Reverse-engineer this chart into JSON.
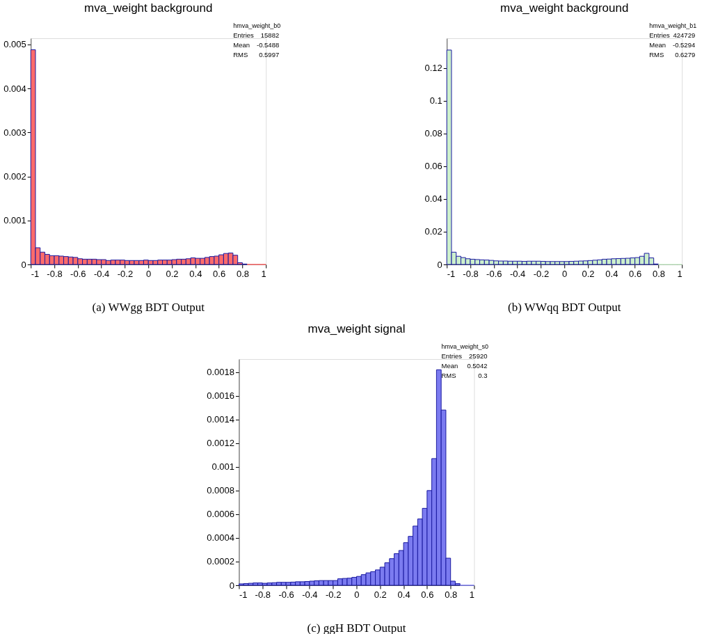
{
  "chart_data": [
    {
      "type": "histogram",
      "title": "mva_weight background",
      "bins": [
        -1,
        -0.96,
        -0.92,
        -0.88,
        -0.84,
        -0.8,
        -0.76,
        -0.72,
        -0.68,
        -0.64,
        -0.6,
        -0.56,
        -0.52,
        -0.48,
        -0.44,
        -0.4,
        -0.36,
        -0.32,
        -0.28,
        -0.24,
        -0.2,
        -0.16,
        -0.12,
        -0.08,
        -0.04,
        0,
        0.04,
        0.08,
        0.12,
        0.16,
        0.2,
        0.24,
        0.28,
        0.32,
        0.36,
        0.4,
        0.44,
        0.48,
        0.52,
        0.56,
        0.6,
        0.64,
        0.68,
        0.72,
        0.76,
        0.8,
        0.84,
        0.88,
        0.92,
        0.96,
        1
      ],
      "values": [
        0.00488,
        0.00038,
        0.00028,
        0.00023,
        0.0002,
        0.0002,
        0.00019,
        0.00018,
        0.00017,
        0.00016,
        0.00013,
        0.00012,
        0.00012,
        0.00012,
        0.00011,
        0.00011,
        9e-05,
        0.0001,
        0.0001,
        0.0001,
        9e-05,
        9e-05,
        9e-05,
        9e-05,
        0.0001,
        9e-05,
        9e-05,
        0.0001,
        0.0001,
        0.0001,
        0.00011,
        0.00012,
        0.00012,
        0.00013,
        0.00015,
        0.00014,
        0.00014,
        0.00016,
        0.00018,
        0.00019,
        0.00022,
        0.00025,
        0.00026,
        0.00021,
        4e-05,
        1e-05,
        0,
        0,
        0,
        0
      ],
      "color": "#ff6b6b",
      "xlim": [
        -1,
        1
      ],
      "xticks": [
        -1,
        -0.8,
        -0.6,
        -0.4,
        -0.2,
        0,
        0.2,
        0.4,
        0.6,
        0.8,
        1
      ],
      "ylim": [
        0,
        0.00514
      ],
      "yticks": [
        0,
        0.001,
        0.002,
        0.003,
        0.004,
        0.005
      ],
      "grid": false,
      "annotations": [
        "hmva_weight_b0",
        "Entries 15882",
        "Mean -0.5488",
        "RMS 0.5997",
        "(a) WWgg BDT Output"
      ]
    },
    {
      "type": "histogram",
      "title": "mva_weight background",
      "bins": [
        -1,
        -0.96,
        -0.92,
        -0.88,
        -0.84,
        -0.8,
        -0.76,
        -0.72,
        -0.68,
        -0.64,
        -0.6,
        -0.56,
        -0.52,
        -0.48,
        -0.44,
        -0.4,
        -0.36,
        -0.32,
        -0.28,
        -0.24,
        -0.2,
        -0.16,
        -0.12,
        -0.08,
        -0.04,
        0,
        0.04,
        0.08,
        0.12,
        0.16,
        0.2,
        0.24,
        0.28,
        0.32,
        0.36,
        0.4,
        0.44,
        0.48,
        0.52,
        0.56,
        0.6,
        0.64,
        0.68,
        0.72,
        0.76,
        0.8,
        0.84,
        0.88,
        0.92,
        0.96,
        1
      ],
      "values": [
        0.131,
        0.0075,
        0.005,
        0.0042,
        0.0035,
        0.0032,
        0.003,
        0.0028,
        0.0027,
        0.0025,
        0.0022,
        0.0021,
        0.0021,
        0.002,
        0.002,
        0.002,
        0.0019,
        0.002,
        0.002,
        0.002,
        0.0019,
        0.0018,
        0.0018,
        0.0018,
        0.0018,
        0.0018,
        0.0019,
        0.002,
        0.0021,
        0.0022,
        0.0024,
        0.0026,
        0.0028,
        0.0032,
        0.0033,
        0.0035,
        0.0036,
        0.0037,
        0.0038,
        0.004,
        0.0042,
        0.005,
        0.0068,
        0.004,
        0.0003,
        0,
        0,
        0,
        0,
        0
      ],
      "color": "#ccf0cc",
      "xlim": [
        -1,
        1
      ],
      "xticks": [
        -1,
        -0.8,
        -0.6,
        -0.4,
        -0.2,
        0,
        0.2,
        0.4,
        0.6,
        0.8,
        1
      ],
      "ylim": [
        0,
        0.1382
      ],
      "yticks": [
        0,
        0.02,
        0.04,
        0.06,
        0.08,
        0.1,
        0.12
      ],
      "grid": false,
      "annotations": [
        "hmva_weight_b1",
        "Entries 424729",
        "Mean -0.5294",
        "RMS 0.6279",
        "(b) WWqq BDT Output"
      ]
    },
    {
      "type": "histogram",
      "title": "mva_weight signal",
      "bins": [
        -1,
        -0.96,
        -0.92,
        -0.88,
        -0.84,
        -0.8,
        -0.76,
        -0.72,
        -0.68,
        -0.64,
        -0.6,
        -0.56,
        -0.52,
        -0.48,
        -0.44,
        -0.4,
        -0.36,
        -0.32,
        -0.28,
        -0.24,
        -0.2,
        -0.16,
        -0.12,
        -0.08,
        -0.04,
        0,
        0.04,
        0.08,
        0.12,
        0.16,
        0.2,
        0.24,
        0.28,
        0.32,
        0.36,
        0.4,
        0.44,
        0.48,
        0.52,
        0.56,
        0.6,
        0.64,
        0.68,
        0.72,
        0.76,
        0.8,
        0.84,
        0.88,
        0.92,
        0.96,
        1
      ],
      "values": [
        1.2e-05,
        1.5e-05,
        1.7e-05,
        2e-05,
        2e-05,
        1.7e-05,
        2e-05,
        2.2e-05,
        2.5e-05,
        2.5e-05,
        2.5e-05,
        2.7e-05,
        3e-05,
        3e-05,
        3.2e-05,
        3.5e-05,
        3.8e-05,
        4e-05,
        4e-05,
        4e-05,
        4e-05,
        5.5e-05,
        5.8e-05,
        6e-05,
        6.7e-05,
        7.5e-05,
        9e-05,
        0.000105,
        0.000115,
        0.00013,
        0.000153,
        0.00019,
        0.000225,
        0.000267,
        0.000294,
        0.00036,
        0.000413,
        0.0005,
        0.00056,
        0.00065,
        0.0008,
        0.00107,
        0.00182,
        0.00148,
        0.000229,
        3.5e-05,
        1.4e-05,
        0,
        0,
        0
      ],
      "color": "#7b7bf0",
      "xlim": [
        -1,
        1
      ],
      "xticks": [
        -1,
        -0.8,
        -0.6,
        -0.4,
        -0.2,
        0,
        0.2,
        0.4,
        0.6,
        0.8,
        1
      ],
      "ylim": [
        0,
        0.00191
      ],
      "yticks": [
        0,
        0.0002,
        0.0004,
        0.0006,
        0.0008,
        0.001,
        0.0012,
        0.0014,
        0.0016,
        0.0018
      ],
      "grid": false,
      "annotations": [
        "hmva_weight_s0",
        "Entries 25920",
        "Mean 0.5042",
        "RMS 0.3",
        "(c) ggH BDT Output"
      ]
    }
  ]
}
